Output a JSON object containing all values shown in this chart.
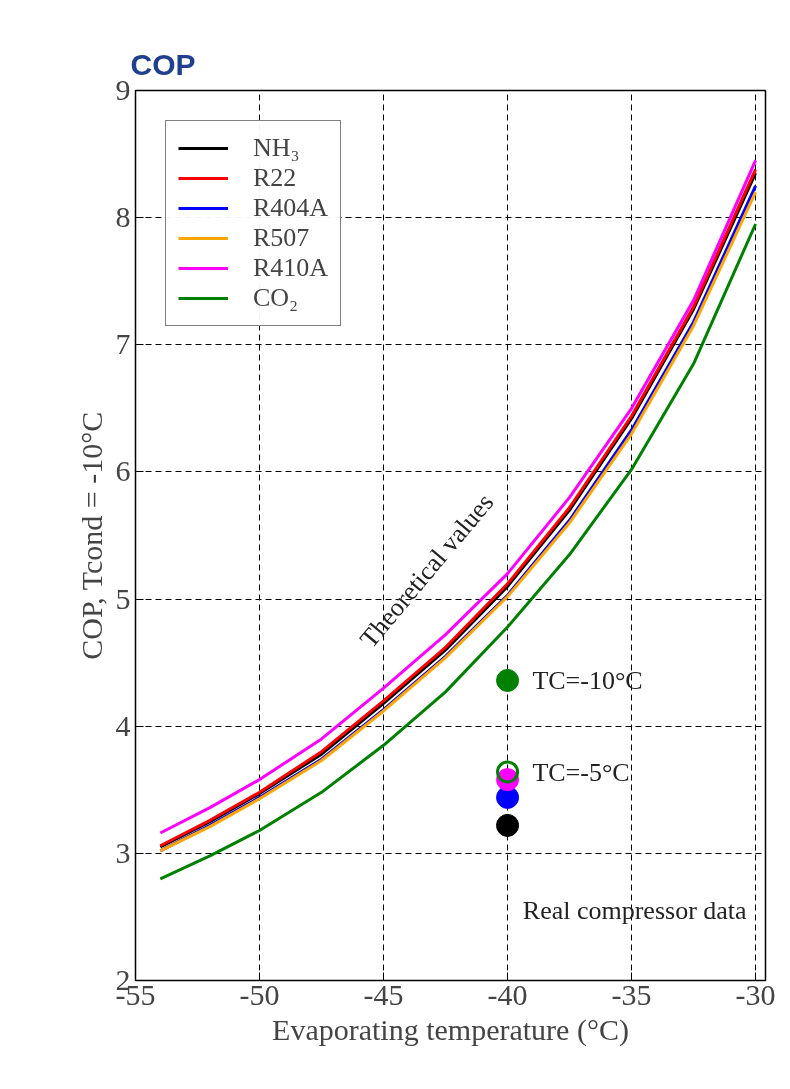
{
  "chart_data": {
    "type": "line",
    "title": "COP",
    "xlabel": "Evaporating temperature (°C)",
    "ylabel": "COP, Tcond = -10°C",
    "x": [
      -54,
      -52,
      -50,
      -47.5,
      -45,
      -42.5,
      -40,
      -37.5,
      -35,
      -32.5,
      -30
    ],
    "series": [
      {
        "name": "NH₃",
        "color": "#000000",
        "values": [
          3.05,
          3.25,
          3.47,
          3.78,
          4.18,
          4.6,
          5.1,
          5.7,
          6.42,
          7.28,
          8.35
        ]
      },
      {
        "name": "R22",
        "color": "#ff0000",
        "values": [
          3.06,
          3.26,
          3.48,
          3.8,
          4.2,
          4.62,
          5.12,
          5.72,
          6.44,
          7.3,
          8.38
        ]
      },
      {
        "name": "R404A",
        "color": "#0000ff",
        "values": [
          3.02,
          3.22,
          3.44,
          3.74,
          4.13,
          4.55,
          5.03,
          5.62,
          6.33,
          7.18,
          8.25
        ]
      },
      {
        "name": "R507",
        "color": "#ffa500",
        "values": [
          3.02,
          3.21,
          3.43,
          3.73,
          4.12,
          4.54,
          5.02,
          5.6,
          6.3,
          7.15,
          8.2
        ]
      },
      {
        "name": "R410A",
        "color": "#ff00ff",
        "values": [
          3.16,
          3.36,
          3.58,
          3.9,
          4.3,
          4.72,
          5.2,
          5.8,
          6.5,
          7.35,
          8.45
        ]
      },
      {
        "name": "CO₂",
        "color": "#008000",
        "values": [
          2.8,
          2.98,
          3.18,
          3.48,
          3.85,
          4.27,
          4.78,
          5.35,
          6.02,
          6.85,
          7.95
        ]
      },
      {
        "type": "scatter",
        "color": "#000000",
        "marker": "circle",
        "values": [
          null,
          null,
          null,
          null,
          null,
          null,
          3.22,
          null,
          null,
          null,
          null
        ]
      },
      {
        "type": "scatter",
        "color": "#0000ff",
        "marker": "circle",
        "values": [
          null,
          null,
          null,
          null,
          null,
          null,
          3.44,
          null,
          null,
          null,
          null
        ]
      },
      {
        "type": "scatter",
        "color": "#ff00ff",
        "marker": "circle",
        "values": [
          null,
          null,
          null,
          null,
          null,
          null,
          3.58,
          null,
          null,
          null,
          null
        ]
      },
      {
        "type": "scatter",
        "color": "#008000",
        "marker": "circle",
        "values": [
          null,
          null,
          null,
          null,
          null,
          null,
          4.36,
          null,
          null,
          null,
          null
        ]
      },
      {
        "type": "scatter",
        "color": "#008000",
        "marker": "circle_open",
        "values": [
          null,
          null,
          null,
          null,
          null,
          null,
          3.64,
          null,
          null,
          null,
          null
        ]
      }
    ],
    "xlim": [
      -55,
      -29.6
    ],
    "ylim": [
      2,
      9
    ],
    "xticks": [
      -55,
      -50,
      -45,
      -40,
      -35,
      -30
    ],
    "yticks": [
      2,
      3,
      4,
      5,
      6,
      7,
      8,
      9
    ],
    "grid": true,
    "legend": "top left",
    "line_style": "solid",
    "annotations": [
      "Theoretical values",
      "TC=-10°C",
      "TC=-5°C",
      "Real compressor data"
    ]
  }
}
